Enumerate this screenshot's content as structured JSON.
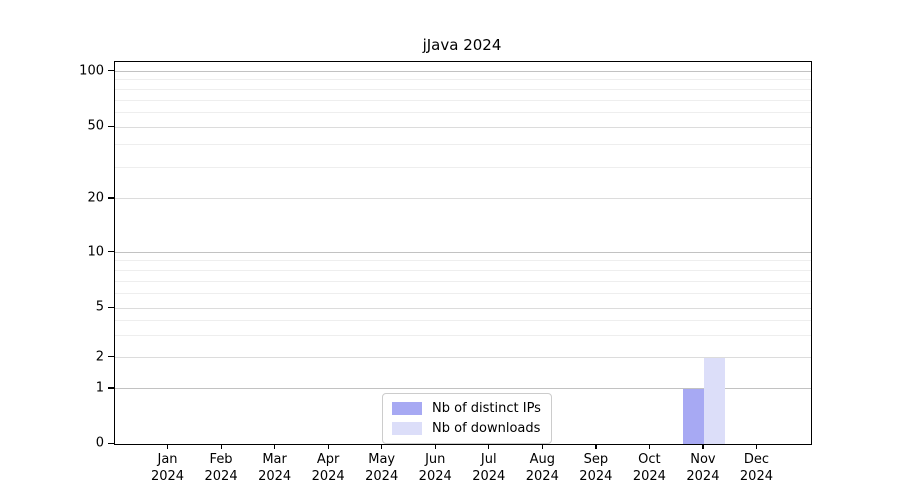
{
  "title": "jJava 2024",
  "chart_data": {
    "type": "bar",
    "title": "jJava 2024",
    "categories": [
      "Jan",
      "Feb",
      "Mar",
      "Apr",
      "May",
      "Jun",
      "Jul",
      "Aug",
      "Sep",
      "Oct",
      "Nov",
      "Dec"
    ],
    "category_sub": "2024",
    "series": [
      {
        "name": "Nb of distinct IPs",
        "color": "#a7a9f3",
        "values": [
          0,
          0,
          0,
          0,
          0,
          0,
          0,
          0,
          0,
          0,
          1,
          0
        ]
      },
      {
        "name": "Nb of downloads",
        "color": "#dcdef9",
        "values": [
          0,
          0,
          0,
          0,
          0,
          0,
          0,
          0,
          0,
          0,
          2,
          0
        ]
      }
    ],
    "y_ticks": [
      0,
      1,
      2,
      5,
      10,
      20,
      50,
      100
    ],
    "y_minor_ticks": [
      3,
      4,
      6,
      7,
      8,
      9,
      30,
      40,
      60,
      70,
      80,
      90
    ],
    "y_scale": {
      "type": "symlog-like",
      "anchors_value": [
        0,
        1,
        2,
        5,
        10,
        20,
        50,
        100
      ],
      "anchors_fraction_from_bottom": [
        0,
        0.144,
        0.2264,
        0.356,
        0.5013,
        0.6414,
        0.8298,
        0.9751
      ]
    },
    "grid": true,
    "legend_position": "lower center"
  },
  "legend": {
    "items": [
      {
        "label": "Nb of distinct IPs",
        "color": "#a7a9f3"
      },
      {
        "label": "Nb of downloads",
        "color": "#dcdef9"
      }
    ]
  },
  "colors": {
    "bar_distinct_ips": "#a7a9f3",
    "bar_downloads": "#dcdef9",
    "grid_decade": "#c2c2c2",
    "grid_mid": "#dcdcdc",
    "grid_minor": "#eeeeee",
    "axis_frame": "#000000",
    "legend_border": "#cccccc",
    "background": "#ffffff"
  }
}
